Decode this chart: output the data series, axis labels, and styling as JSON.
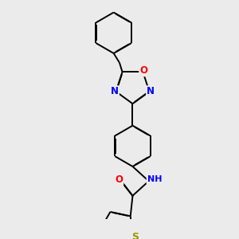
{
  "bg_color": "#ebebeb",
  "bond_color": "#000000",
  "lw": 1.4,
  "dbo": 0.018,
  "atom_colors": {
    "N": "#0000ff",
    "O": "#ff0000",
    "S": "#999900",
    "C": "#000000"
  },
  "fs": 8.5,
  "figsize": [
    3.0,
    3.0
  ],
  "dpi": 100
}
